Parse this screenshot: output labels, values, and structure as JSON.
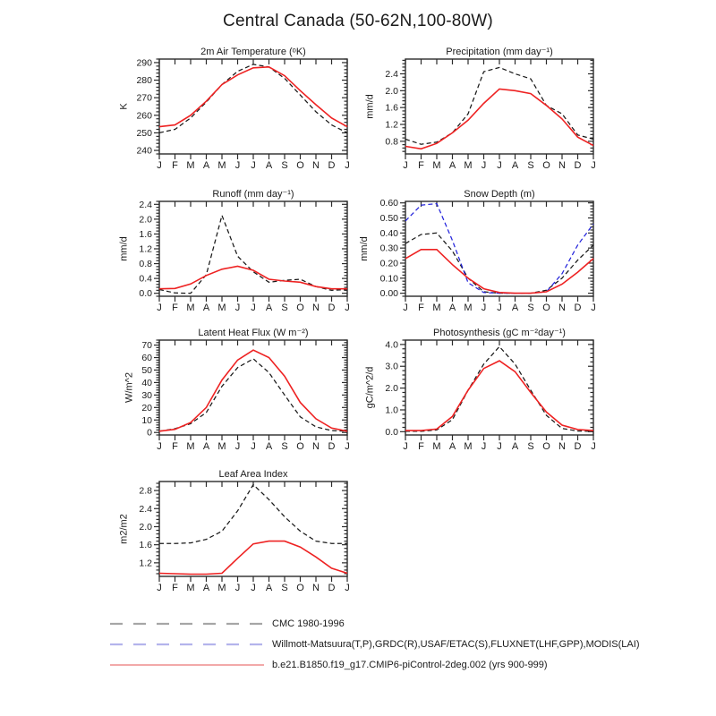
{
  "figure": {
    "title": "Central Canada (50-62N,100-80W)"
  },
  "months": [
    "J",
    "F",
    "M",
    "A",
    "M",
    "J",
    "J",
    "A",
    "S",
    "O",
    "N",
    "D",
    "J"
  ],
  "colors": {
    "cmc": "#1a1a1a",
    "obs": "#2424dc",
    "model": "#ee2222",
    "frame": "#2b2b2b",
    "legend_cmc": "#a6a6a6",
    "legend_obs": "#b4b4ec",
    "legend_model": "#f2a9a9"
  },
  "chart_data": [
    {
      "id": "temperature",
      "type": "line",
      "title": "2m Air Temperature (ᵒK)",
      "ylabel": "K",
      "ylim": [
        238,
        292
      ],
      "yticks": [
        240,
        250,
        260,
        270,
        280,
        290
      ],
      "ytick_labels": [
        "240",
        "250",
        "260",
        "270",
        "280",
        "290"
      ],
      "series": [
        {
          "name": "CMC 1980-1996",
          "color_key": "cmc",
          "dashed": true,
          "values": [
            250,
            252,
            258.5,
            267.5,
            277.5,
            285,
            289,
            287.5,
            281,
            271.5,
            262,
            254.5,
            250
          ]
        },
        {
          "name": "b.e21.B1850.f19_g17.CMIP6-piControl-2deg.002 (yrs 900-999)",
          "color_key": "model",
          "dashed": false,
          "values": [
            253.5,
            254.5,
            260,
            268,
            277.5,
            283,
            287,
            287.5,
            282.5,
            274,
            266,
            258.5,
            253.5
          ]
        }
      ]
    },
    {
      "id": "precipitation",
      "type": "line",
      "title": "Precipitation (mm day⁻¹)",
      "ylabel": "mm/d",
      "ylim": [
        0.5,
        2.75
      ],
      "yticks": [
        0.8,
        1.2,
        1.6,
        2.0,
        2.4
      ],
      "ytick_labels": [
        "0.8",
        "1.2",
        "1.6",
        "2.0",
        "2.4"
      ],
      "series": [
        {
          "name": "CMC 1980-1996",
          "color_key": "cmc",
          "dashed": true,
          "values": [
            0.85,
            0.73,
            0.78,
            1.0,
            1.45,
            2.45,
            2.55,
            2.4,
            2.28,
            1.65,
            1.45,
            0.95,
            0.85
          ]
        },
        {
          "name": "b.e21.B1850.f19_g17.CMIP6-piControl-2deg.002 (yrs 900-999)",
          "color_key": "model",
          "dashed": false,
          "values": [
            0.68,
            0.62,
            0.75,
            1.0,
            1.3,
            1.7,
            2.04,
            2.0,
            1.93,
            1.65,
            1.33,
            0.9,
            0.7
          ]
        }
      ]
    },
    {
      "id": "runoff",
      "type": "line",
      "title": "Runoff (mm day⁻¹)",
      "ylabel": "mm/d",
      "ylim": [
        -0.08,
        2.48
      ],
      "yticks": [
        0.0,
        0.4,
        0.8,
        1.2,
        1.6,
        2.0,
        2.4
      ],
      "ytick_labels": [
        "0.0",
        "0.4",
        "0.8",
        "1.2",
        "1.6",
        "2.0",
        "2.4"
      ],
      "series": [
        {
          "name": "CMC 1980-1996",
          "color_key": "cmc",
          "dashed": true,
          "values": [
            0.1,
            0.01,
            0.0,
            0.5,
            2.1,
            1.0,
            0.58,
            0.3,
            0.35,
            0.38,
            0.18,
            0.08,
            0.1
          ]
        },
        {
          "name": "b.e21.B1850.f19_g17.CMIP6-piControl-2deg.002 (yrs 900-999)",
          "color_key": "model",
          "dashed": false,
          "values": [
            0.12,
            0.13,
            0.25,
            0.48,
            0.65,
            0.73,
            0.62,
            0.38,
            0.33,
            0.3,
            0.18,
            0.12,
            0.12
          ]
        }
      ]
    },
    {
      "id": "snow-depth",
      "type": "line",
      "title": "Snow Depth (m)",
      "ylabel": "mm/d",
      "ylim": [
        -0.02,
        0.61
      ],
      "yticks": [
        0.0,
        0.1,
        0.2,
        0.3,
        0.4,
        0.5,
        0.6
      ],
      "ytick_labels": [
        "0.00",
        "0.10",
        "0.20",
        "0.30",
        "0.40",
        "0.50",
        "0.60"
      ],
      "series": [
        {
          "name": "CMC 1980-1996",
          "color_key": "cmc",
          "dashed": true,
          "values": [
            0.33,
            0.39,
            0.4,
            0.28,
            0.1,
            0.01,
            0.0,
            0.0,
            0.0,
            0.02,
            0.1,
            0.22,
            0.32
          ]
        },
        {
          "name": "Willmott-Matsuura(T,P),GRDC(R),USAF/ETAC(S),FLUXNET(LHF,GPP),MODIS(LAI)",
          "color_key": "obs",
          "dashed": true,
          "values": [
            0.48,
            0.585,
            0.595,
            0.35,
            0.07,
            0.005,
            0.0,
            0.0,
            0.0,
            0.01,
            0.13,
            0.32,
            0.46
          ]
        },
        {
          "name": "b.e21.B1850.f19_g17.CMIP6-piControl-2deg.002 (yrs 900-999)",
          "color_key": "model",
          "dashed": false,
          "values": [
            0.23,
            0.29,
            0.29,
            0.19,
            0.1,
            0.03,
            0.005,
            0.0,
            0.0,
            0.01,
            0.06,
            0.14,
            0.23
          ]
        }
      ]
    },
    {
      "id": "latent-heat-flux",
      "type": "line",
      "title": "Latent Heat Flux (W m⁻²)",
      "ylabel": "W/m^2",
      "ylim": [
        -2,
        74
      ],
      "yticks": [
        0,
        10,
        20,
        30,
        40,
        50,
        60,
        70
      ],
      "ytick_labels": [
        "0",
        "10",
        "20",
        "30",
        "40",
        "50",
        "60",
        "70"
      ],
      "series": [
        {
          "name": "CMC 1980-1996",
          "color_key": "cmc",
          "dashed": true,
          "values": [
            1,
            3,
            7,
            16,
            37,
            52,
            59,
            48,
            30,
            12.5,
            4.5,
            1.5,
            1
          ]
        },
        {
          "name": "b.e21.B1850.f19_g17.CMIP6-piControl-2deg.002 (yrs 900-999)",
          "color_key": "model",
          "dashed": false,
          "values": [
            1,
            2.5,
            8,
            20,
            42,
            58,
            66,
            60,
            45,
            24,
            11,
            3.5,
            1
          ]
        }
      ]
    },
    {
      "id": "photosynthesis",
      "type": "line",
      "title": "Photosynthesis (gC m⁻²day⁻¹)",
      "ylabel": "gC/m^2/d",
      "ylim": [
        -0.15,
        4.2
      ],
      "yticks": [
        0.0,
        1.0,
        2.0,
        3.0,
        4.0
      ],
      "ytick_labels": [
        "0.0",
        "1.0",
        "2.0",
        "3.0",
        "4.0"
      ],
      "series": [
        {
          "name": "CMC 1980-1996",
          "color_key": "cmc",
          "dashed": true,
          "values": [
            0.02,
            0.02,
            0.08,
            0.55,
            1.9,
            3.1,
            3.9,
            3.1,
            1.9,
            0.75,
            0.15,
            0.03,
            0.02
          ]
        },
        {
          "name": "b.e21.B1850.f19_g17.CMIP6-piControl-2deg.002 (yrs 900-999)",
          "color_key": "model",
          "dashed": false,
          "values": [
            0.05,
            0.05,
            0.12,
            0.7,
            1.9,
            2.9,
            3.25,
            2.75,
            1.8,
            0.9,
            0.3,
            0.1,
            0.05
          ]
        }
      ]
    },
    {
      "id": "leaf-area-index",
      "type": "line",
      "title": "Leaf Area Index",
      "ylabel": "m2/m2",
      "ylim": [
        0.9,
        3.0
      ],
      "yticks": [
        1.2,
        1.6,
        2.0,
        2.4,
        2.8
      ],
      "ytick_labels": [
        "1.2",
        "1.6",
        "2.0",
        "2.4",
        "2.8"
      ],
      "series": [
        {
          "name": "CMC 1980-1996",
          "color_key": "cmc",
          "dashed": true,
          "values": [
            1.63,
            1.63,
            1.64,
            1.72,
            1.9,
            2.35,
            2.93,
            2.6,
            2.22,
            1.9,
            1.68,
            1.63,
            1.63
          ]
        },
        {
          "name": "b.e21.B1850.f19_g17.CMIP6-piControl-2deg.002 (yrs 900-999)",
          "color_key": "model",
          "dashed": false,
          "values": [
            0.97,
            0.96,
            0.95,
            0.95,
            0.97,
            1.3,
            1.62,
            1.68,
            1.68,
            1.55,
            1.33,
            1.08,
            0.97
          ]
        }
      ]
    }
  ],
  "legend": {
    "items": [
      {
        "label": "CMC 1980-1996",
        "color": "#a6a6a6",
        "dashed": true
      },
      {
        "label": "Willmott-Matsuura(T,P),GRDC(R),USAF/ETAC(S),FLUXNET(LHF,GPP),MODIS(LAI)",
        "color": "#b4b4ec",
        "dashed": true
      },
      {
        "label": "b.e21.B1850.f19_g17.CMIP6-piControl-2deg.002 (yrs 900-999)",
        "color": "#f2a9a9",
        "dashed": false
      }
    ]
  }
}
